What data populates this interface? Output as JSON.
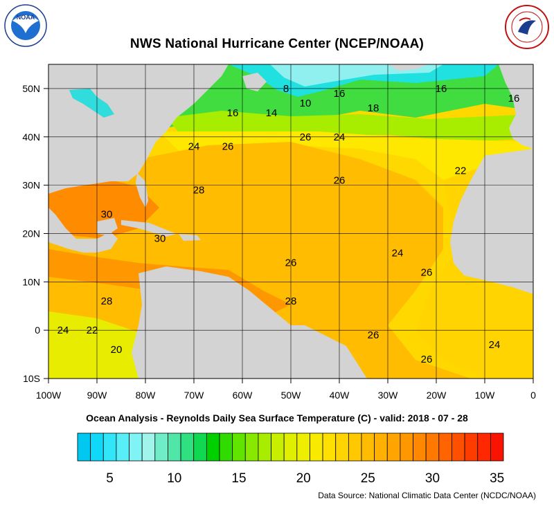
{
  "title": "NWS National Hurricane Center (NCEP/NOAA)",
  "subtitle": "Ocean Analysis - Reynolds Daily Sea Surface Temperature (C) - valid: 2018 - 07 - 28",
  "source": "Data Source: National Climatic Data Center (NCDC/NOAA)",
  "logos": {
    "left": {
      "name": "NOAA",
      "text": "NOAA",
      "ring_text": "NATIONAL OCEANIC AND ATMOSPHERIC ADMINISTRATION · U.S. DEPARTMENT OF COMMERCE"
    },
    "right": {
      "name": "National Weather Service",
      "ring_text": "NATIONAL WEATHER SERVICE"
    }
  },
  "map": {
    "lon_ticks": [
      "100W",
      "90W",
      "80W",
      "70W",
      "60W",
      "50W",
      "40W",
      "30W",
      "20W",
      "10W",
      "0"
    ],
    "lat_ticks": [
      "50N",
      "40N",
      "30N",
      "20N",
      "10N",
      "0",
      "10S"
    ],
    "lon_range": [
      -100,
      0
    ],
    "lat_range": [
      -10,
      55
    ],
    "colors": {
      "land": "#d3d3d3",
      "warm_water": "#f5a400",
      "cool_water": "#ffe100",
      "cold_water": "#00e8a0"
    }
  },
  "contour_labels": [
    {
      "text": "8",
      "lon": -51,
      "lat": 50
    },
    {
      "text": "10",
      "lon": -47,
      "lat": 47
    },
    {
      "text": "16",
      "lon": -40,
      "lat": 49
    },
    {
      "text": "18",
      "lon": -33,
      "lat": 46
    },
    {
      "text": "16",
      "lon": -19,
      "lat": 50
    },
    {
      "text": "16",
      "lon": -4,
      "lat": 48
    },
    {
      "text": "14",
      "lon": -54,
      "lat": 45
    },
    {
      "text": "16",
      "lon": -62,
      "lat": 45
    },
    {
      "text": "26",
      "lon": -47,
      "lat": 40
    },
    {
      "text": "24",
      "lon": -40,
      "lat": 40
    },
    {
      "text": "24",
      "lon": -70,
      "lat": 38
    },
    {
      "text": "26",
      "lon": -63,
      "lat": 38
    },
    {
      "text": "22",
      "lon": -15,
      "lat": 33
    },
    {
      "text": "26",
      "lon": -40,
      "lat": 31
    },
    {
      "text": "28",
      "lon": -69,
      "lat": 29
    },
    {
      "text": "30",
      "lon": -88,
      "lat": 24
    },
    {
      "text": "30",
      "lon": -77,
      "lat": 19
    },
    {
      "text": "24",
      "lon": -28,
      "lat": 16
    },
    {
      "text": "26",
      "lon": -50,
      "lat": 14
    },
    {
      "text": "26",
      "lon": -22,
      "lat": 12
    },
    {
      "text": "28",
      "lon": -88,
      "lat": 6
    },
    {
      "text": "28",
      "lon": -50,
      "lat": 6
    },
    {
      "text": "24",
      "lon": -97,
      "lat": 0
    },
    {
      "text": "22",
      "lon": -91,
      "lat": 0
    },
    {
      "text": "26",
      "lon": -33,
      "lat": -1
    },
    {
      "text": "24",
      "lon": -8,
      "lat": -3
    },
    {
      "text": "20",
      "lon": -86,
      "lat": -4
    },
    {
      "text": "26",
      "lon": -22,
      "lat": -6
    }
  ],
  "colorbar": {
    "labels": [
      "5",
      "10",
      "15",
      "20",
      "25",
      "30",
      "35"
    ],
    "label_values": [
      5,
      10,
      15,
      20,
      25,
      30,
      35
    ],
    "range": [
      3,
      36
    ],
    "colors": [
      "#00c8f0",
      "#10d8f8",
      "#30e6f8",
      "#58eef8",
      "#80f4f4",
      "#a0f4ec",
      "#70ecc8",
      "#50e6a8",
      "#30e080",
      "#10d850",
      "#00d000",
      "#30dc00",
      "#60e400",
      "#88e800",
      "#a8ec00",
      "#c8ee00",
      "#e0ee00",
      "#eeee00",
      "#f8ea00",
      "#ffe000",
      "#ffd400",
      "#ffc800",
      "#ffbc00",
      "#ffb000",
      "#ffa400",
      "#ff9800",
      "#ff8800",
      "#ff7800",
      "#ff6400",
      "#ff5000",
      "#ff3c00",
      "#ff2800",
      "#f81400"
    ]
  }
}
